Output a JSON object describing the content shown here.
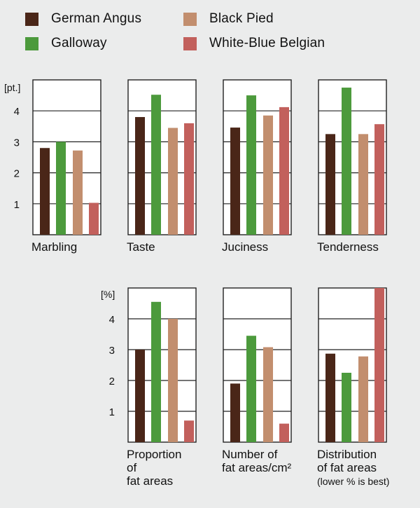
{
  "colors": {
    "german_angus": "#4a2618",
    "galloway": "#4c9a3c",
    "black_pied": "#c28e6e",
    "white_blue_belgian": "#c2605c",
    "panel_bg": "#ffffff",
    "grid": "#222222"
  },
  "legend": {
    "items": [
      {
        "label": "German Angus",
        "color": "#4a2618"
      },
      {
        "label": "Black Pied",
        "color": "#c28e6e"
      },
      {
        "label": "Galloway",
        "color": "#4c9a3c"
      },
      {
        "label": "White-Blue Belgian",
        "color": "#c2605c"
      }
    ]
  },
  "chart_data": [
    {
      "type": "bar",
      "unit": "[pt.]",
      "ylim": [
        0,
        5
      ],
      "yticks": [
        1,
        2,
        3,
        4
      ],
      "grid": true,
      "series_names": [
        "German Angus",
        "Galloway",
        "Black Pied",
        "White-Blue Belgian"
      ],
      "panels": [
        {
          "label": [
            "Marbling"
          ],
          "values": [
            2.8,
            3.0,
            2.72,
            1.03
          ]
        },
        {
          "label": [
            "Taste"
          ],
          "values": [
            3.8,
            4.52,
            3.45,
            3.6
          ]
        },
        {
          "label": [
            "Juciness"
          ],
          "values": [
            3.46,
            4.5,
            3.85,
            4.12
          ]
        },
        {
          "label": [
            "Tenderness"
          ],
          "values": [
            3.25,
            4.75,
            3.25,
            3.57
          ]
        }
      ]
    },
    {
      "type": "bar",
      "unit": "[%]",
      "ylim": [
        0,
        5
      ],
      "yticks": [
        1,
        2,
        3,
        4
      ],
      "grid": true,
      "series_names": [
        "German Angus",
        "Galloway",
        "Black Pied",
        "White-Blue Belgian"
      ],
      "panels": [
        {
          "label": [
            "Proportion",
            "of",
            "fat areas"
          ],
          "values": [
            3.0,
            4.55,
            4.0,
            0.7
          ]
        },
        {
          "label": [
            "Number of",
            "fat areas/cm²"
          ],
          "values": [
            1.9,
            3.45,
            3.08,
            0.6
          ]
        },
        {
          "label": [
            "Distribution",
            "of fat areas",
            "(lower % is best)"
          ],
          "values": [
            2.87,
            2.25,
            2.78,
            5.0
          ]
        }
      ]
    }
  ]
}
